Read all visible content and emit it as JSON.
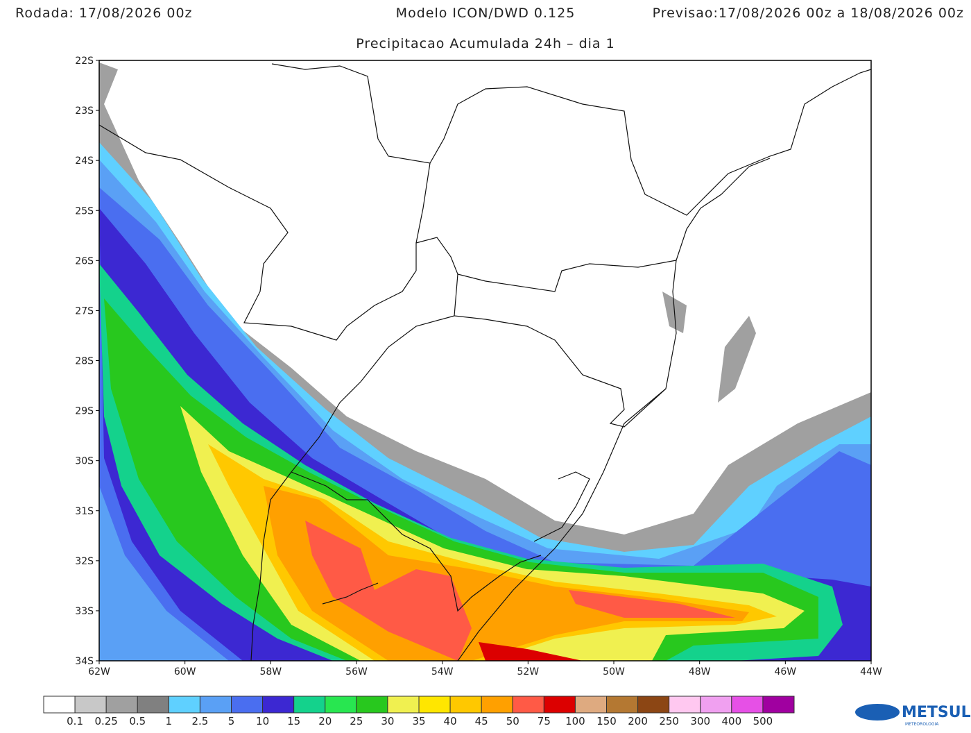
{
  "header": {
    "run": "Rodada: 17/08/2026 00z",
    "model": "Modelo ICON/DWD 0.125",
    "forecast": "Previsao:17/08/2026 00z a 18/08/2026 00z"
  },
  "subtitle": "Precipitacao Acumulada 24h – dia 1",
  "lat_labels": [
    "22S",
    "23S",
    "24S",
    "25S",
    "26S",
    "27S",
    "28S",
    "29S",
    "30S",
    "31S",
    "32S",
    "33S",
    "34S"
  ],
  "lon_labels": [
    "62W",
    "60W",
    "58W",
    "56W",
    "54W",
    "52W",
    "50W",
    "48W",
    "46W",
    "44W"
  ],
  "colorbar": {
    "colors": [
      "#ffffff",
      "#c8c8c8",
      "#a0a0a0",
      "#808080",
      "#5fd0ff",
      "#5aa0f5",
      "#4a6ef0",
      "#3c28d2",
      "#14d28c",
      "#28e650",
      "#28c81e",
      "#f0f050",
      "#ffe600",
      "#ffc800",
      "#ffa000",
      "#ff5a46",
      "#dc0000",
      "#deaa80",
      "#b47832",
      "#8c4614",
      "#ffc8f0",
      "#f0a0f0",
      "#e650e6",
      "#a000a0"
    ],
    "labels": [
      "0.1",
      "0.25",
      "0.5",
      "1",
      "2.5",
      "5",
      "10",
      "15",
      "20",
      "25",
      "30",
      "35",
      "40",
      "45",
      "50",
      "75",
      "100",
      "150",
      "200",
      "250",
      "300",
      "400",
      "500"
    ]
  },
  "logo": {
    "name": "METSUL",
    "tagline": "METEOROLOGIA"
  }
}
